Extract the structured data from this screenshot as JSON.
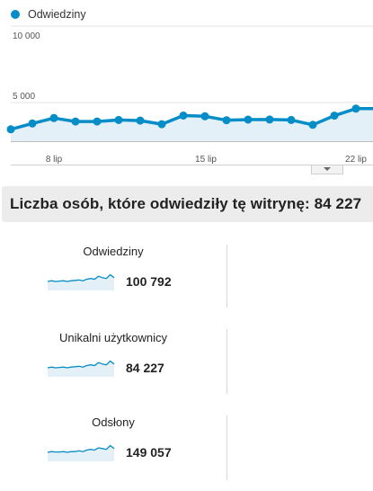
{
  "legend": {
    "label": "Odwiedziny",
    "color": "#058dc7"
  },
  "chart_data": {
    "type": "area",
    "ylim": [
      0,
      10000
    ],
    "y_ticks": [
      "10 000",
      "5 000"
    ],
    "x_ticks": [
      "8 lip",
      "15 lip",
      "22 lip"
    ],
    "series": [
      {
        "values": [
          3250,
          3630,
          3980,
          3760,
          3760,
          3860,
          3820,
          3580,
          4150,
          4100,
          3840,
          3880,
          3890,
          3860,
          3540,
          4140,
          4600,
          4600
        ]
      }
    ]
  },
  "heading": {
    "text": "Liczba osób, które odwiedziły tę witrynę: 84 227"
  },
  "metrics": [
    {
      "label": "Odwiedziny",
      "value": "100 792",
      "spark": [
        12,
        13,
        12,
        12.5,
        13,
        12,
        13,
        13.5,
        14,
        13,
        15,
        16,
        15,
        19,
        17,
        16,
        21,
        17
      ]
    },
    {
      "label": "Unikalni użytkownicy",
      "value": "84 227",
      "spark": [
        12,
        13,
        12,
        12.5,
        13,
        12,
        13,
        13.5,
        14,
        13,
        15,
        16,
        15,
        19,
        17,
        16,
        21,
        17
      ]
    },
    {
      "label": "Odsłony",
      "value": "149 057",
      "spark": [
        12,
        13,
        12.5,
        12.5,
        13,
        12,
        13,
        13,
        14,
        13,
        15,
        16,
        15,
        18,
        17,
        16,
        21,
        17
      ]
    }
  ]
}
